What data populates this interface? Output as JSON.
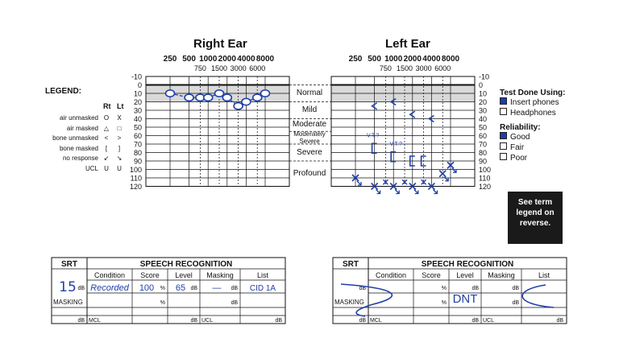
{
  "right_ear": {
    "title": "Right Ear",
    "freq_top": [
      "250",
      "500",
      "1000",
      "2000",
      "4000",
      "8000"
    ],
    "freq_mid": [
      "750",
      "1500",
      "3000",
      "6000"
    ]
  },
  "left_ear": {
    "title": "Left Ear",
    "freq_top": [
      "250",
      "500",
      "1000",
      "2000",
      "4000",
      "8000"
    ],
    "freq_mid": [
      "750",
      "1500",
      "3000",
      "6000"
    ]
  },
  "db_levels": [
    "-10",
    "0",
    "10",
    "20",
    "30",
    "40",
    "50",
    "60",
    "70",
    "80",
    "90",
    "100",
    "110",
    "120"
  ],
  "legend": {
    "title": "LEGEND:",
    "col_rt": "Rt",
    "col_lt": "Lt",
    "rows": [
      {
        "label": "air unmasked",
        "rt": "O",
        "lt": "X"
      },
      {
        "label": "air masked",
        "rt": "△",
        "lt": "□"
      },
      {
        "label": "bone unmasked",
        "rt": "<",
        "lt": ">"
      },
      {
        "label": "bone masked",
        "rt": "[",
        "lt": "]"
      },
      {
        "label": "no response",
        "rt": "↙",
        "lt": "↘"
      },
      {
        "label": "UCL",
        "rt": "U",
        "lt": "U"
      }
    ]
  },
  "categories": [
    "Normal",
    "Mild",
    "Moderate",
    "Moderately Severe",
    "Severe",
    "Profound"
  ],
  "test_done": {
    "title": "Test Done Using:",
    "options": [
      {
        "label": "Insert phones",
        "checked": true
      },
      {
        "label": "Headphones",
        "checked": false
      }
    ]
  },
  "reliability": {
    "title": "Reliability:",
    "options": [
      {
        "label": "Good",
        "checked": true
      },
      {
        "label": "Fair",
        "checked": false
      },
      {
        "label": "Poor",
        "checked": false
      }
    ]
  },
  "term_box": "See term legend on reverse.",
  "speech_table": {
    "srt": "SRT",
    "speech_recognition": "SPEECH RECOGNITION",
    "headers": [
      "Condition",
      "Score",
      "Level",
      "Masking",
      "List"
    ],
    "db": "dB",
    "pct": "%",
    "masking": "MASKING",
    "mcl": "MCL",
    "ucl": "UCL"
  },
  "right_speech": {
    "srt_value": "15",
    "condition": "Recorded",
    "score": "100",
    "level": "65",
    "masking": "—",
    "list": "CID 1A"
  },
  "left_speech": {
    "note": "DNT"
  },
  "annotations": {
    "vt1": "V.T.?",
    "vt2": "V.T.?"
  },
  "plot": {
    "ink_color": "#1f3fa8",
    "right_air_unmasked": [
      {
        "freq": "250",
        "db": 10
      },
      {
        "freq": "500",
        "db": 15
      },
      {
        "freq": "750",
        "db": 15
      },
      {
        "freq": "1000",
        "db": 15
      },
      {
        "freq": "1500",
        "db": 10
      },
      {
        "freq": "2000",
        "db": 15
      },
      {
        "freq": "3000",
        "db": 25
      },
      {
        "freq": "4000",
        "db": 20
      },
      {
        "freq": "6000",
        "db": 15
      },
      {
        "freq": "8000",
        "db": 10
      }
    ],
    "left_bone_unmasked": [
      {
        "freq": "500",
        "db": 25
      },
      {
        "freq": "1000",
        "db": 20
      },
      {
        "freq": "2000",
        "db": 35
      },
      {
        "freq": "4000",
        "db": 40
      }
    ],
    "left_bone_masked": [
      {
        "freq": "500",
        "db": 75
      },
      {
        "freq": "1000",
        "db": 85
      },
      {
        "freq": "2000",
        "db": 90
      },
      {
        "freq": "3000",
        "db": 90
      }
    ],
    "left_air_no_response": [
      {
        "freq": "250",
        "db": 110
      },
      {
        "freq": "500",
        "db": 120
      },
      {
        "freq": "1000",
        "db": 120
      },
      {
        "freq": "2000",
        "db": 120
      },
      {
        "freq": "4000",
        "db": 120
      },
      {
        "freq": "6000",
        "db": 105
      },
      {
        "freq": "8000",
        "db": 95
      }
    ],
    "left_extra_x": [
      {
        "freq": "750",
        "db": 115
      },
      {
        "freq": "1500",
        "db": 115
      },
      {
        "freq": "3000",
        "db": 115
      }
    ]
  }
}
